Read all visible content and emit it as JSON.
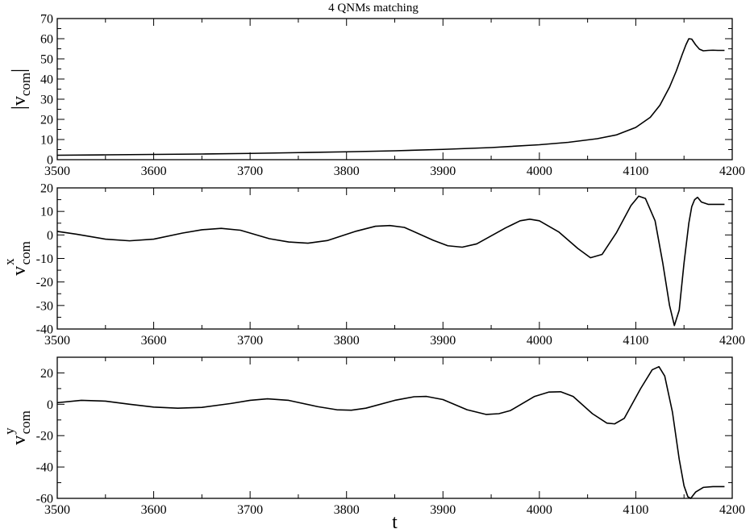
{
  "chart_data": [
    {
      "type": "line",
      "title": "4 QNMs matching",
      "ylabel": "|v_com|",
      "ylabel_parts": {
        "main": "|v",
        "sub": "com",
        "end": "|"
      },
      "xlim": [
        3500,
        4200
      ],
      "ylim": [
        0,
        70
      ],
      "xticks": [
        3500,
        3600,
        3700,
        3800,
        3900,
        4000,
        4100,
        4200
      ],
      "yticks": [
        0,
        10,
        20,
        30,
        40,
        50,
        60,
        70
      ],
      "series": [
        {
          "x": [
            3500,
            3550,
            3600,
            3650,
            3700,
            3750,
            3800,
            3850,
            3900,
            3950,
            4000,
            4030,
            4060,
            4080,
            4100,
            4115,
            4125,
            4135,
            4142,
            4148,
            4152,
            4155,
            4158,
            4162,
            4166,
            4170,
            4175,
            4180,
            4185,
            4192
          ],
          "values": [
            2.2,
            2.4,
            2.6,
            2.8,
            3.1,
            3.5,
            3.9,
            4.4,
            5.1,
            6.0,
            7.4,
            8.6,
            10.4,
            12.3,
            16.0,
            21.0,
            27.0,
            36.0,
            44.0,
            52.0,
            57.0,
            60.0,
            59.8,
            57.0,
            54.8,
            54.0,
            54.2,
            54.3,
            54.2,
            54.2
          ]
        }
      ],
      "grid": false
    },
    {
      "type": "line",
      "title": "",
      "ylabel": "v^x_com",
      "ylabel_parts": {
        "main": "v",
        "sup": "x",
        "sub": "com"
      },
      "xlim": [
        3500,
        4200
      ],
      "ylim": [
        -40,
        20
      ],
      "xticks": [
        3500,
        3600,
        3700,
        3800,
        3900,
        4000,
        4100,
        4200
      ],
      "yticks": [
        -40,
        -30,
        -20,
        -10,
        0,
        10,
        20
      ],
      "series": [
        {
          "x": [
            3500,
            3520,
            3550,
            3575,
            3600,
            3630,
            3650,
            3670,
            3690,
            3720,
            3740,
            3760,
            3780,
            3810,
            3830,
            3845,
            3860,
            3890,
            3905,
            3920,
            3935,
            3965,
            3980,
            3990,
            4000,
            4020,
            4040,
            4053,
            4065,
            4080,
            4095,
            4103,
            4110,
            4120,
            4128,
            4135,
            4140,
            4145,
            4150,
            4155,
            4158,
            4161,
            4164,
            4168,
            4175,
            4185,
            4192
          ],
          "values": [
            1.5,
            0.3,
            -1.8,
            -2.5,
            -1.8,
            0.8,
            2.2,
            2.8,
            2.0,
            -1.6,
            -3.0,
            -3.5,
            -2.4,
            1.6,
            3.7,
            4.0,
            3.2,
            -2.3,
            -4.6,
            -5.2,
            -3.8,
            3.0,
            6.0,
            6.7,
            6.0,
            1.3,
            -5.8,
            -9.7,
            -8.3,
            1.0,
            12.5,
            16.5,
            15.5,
            6.0,
            -12.0,
            -30.0,
            -38.5,
            -32.0,
            -12.0,
            5.0,
            12.0,
            15.0,
            16.0,
            14.0,
            13.0,
            13.0,
            13.0
          ]
        }
      ],
      "grid": false
    },
    {
      "type": "line",
      "title": "",
      "xlabel": "t",
      "ylabel": "v^y_com",
      "ylabel_parts": {
        "main": "v",
        "sup": "y",
        "sub": "com"
      },
      "xlim": [
        3500,
        4200
      ],
      "ylim": [
        -60,
        30
      ],
      "xticks": [
        3500,
        3600,
        3700,
        3800,
        3900,
        4000,
        4100,
        4200
      ],
      "yticks": [
        -60,
        -40,
        -20,
        0,
        20
      ],
      "series": [
        {
          "x": [
            3500,
            3525,
            3550,
            3575,
            3600,
            3625,
            3650,
            3680,
            3700,
            3718,
            3740,
            3770,
            3790,
            3805,
            3820,
            3850,
            3870,
            3883,
            3900,
            3925,
            3945,
            3958,
            3970,
            3995,
            4010,
            4022,
            4035,
            4055,
            4070,
            4078,
            4088,
            4105,
            4117,
            4124,
            4130,
            4138,
            4145,
            4150,
            4154,
            4157,
            4162,
            4170,
            4180,
            4192
          ],
          "values": [
            1.0,
            2.5,
            2.0,
            0.0,
            -1.8,
            -2.5,
            -2.0,
            0.5,
            2.5,
            3.5,
            2.5,
            -1.5,
            -3.5,
            -3.8,
            -2.5,
            2.5,
            4.8,
            5.0,
            3.0,
            -3.5,
            -6.5,
            -6.0,
            -4.0,
            5.0,
            7.8,
            8.0,
            5.0,
            -6.0,
            -12.0,
            -12.5,
            -9.0,
            10.0,
            22.0,
            24.0,
            18.0,
            -5.0,
            -35.0,
            -52.0,
            -59.0,
            -60.0,
            -56.0,
            -53.0,
            -52.5,
            -52.5
          ]
        }
      ],
      "grid": false
    }
  ]
}
